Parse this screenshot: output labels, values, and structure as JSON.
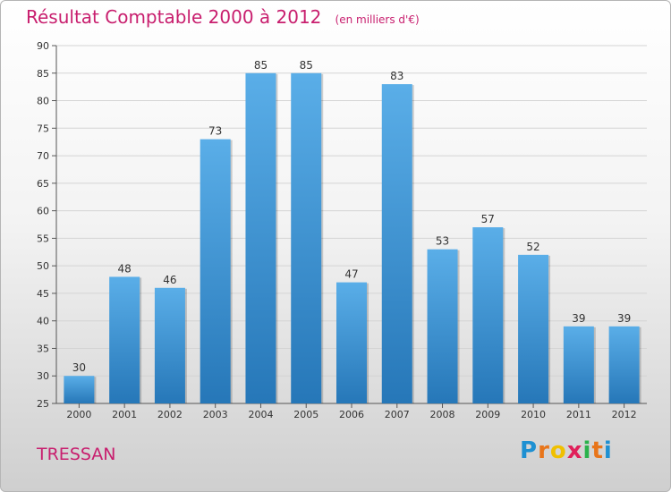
{
  "title": "Résultat Comptable 2000 à 2012",
  "subtitle": "(en milliers d'€)",
  "commune": "TRESSAN",
  "logo": {
    "letters": [
      "P",
      "r",
      "o",
      "x",
      "i",
      "t",
      "i"
    ],
    "colors": [
      "#1e90d2",
      "#e8751a",
      "#f0c000",
      "#e0205a",
      "#2bb24c",
      "#e8751a",
      "#1e90d2"
    ]
  },
  "chart_data": {
    "type": "bar",
    "title": "Résultat Comptable 2000 à 2012",
    "xlabel": "",
    "ylabel": "(en milliers d'€)",
    "categories": [
      "2000",
      "2001",
      "2002",
      "2003",
      "2004",
      "2005",
      "2006",
      "2007",
      "2008",
      "2009",
      "2010",
      "2011",
      "2012"
    ],
    "values": [
      30,
      48,
      46,
      73,
      85,
      85,
      47,
      83,
      53,
      57,
      52,
      39,
      39
    ],
    "ylim": [
      25,
      90
    ],
    "yticks": [
      25,
      30,
      35,
      40,
      45,
      50,
      55,
      60,
      65,
      70,
      75,
      80,
      85,
      90
    ],
    "grid": true,
    "bar_color": "#3a8fd6"
  }
}
